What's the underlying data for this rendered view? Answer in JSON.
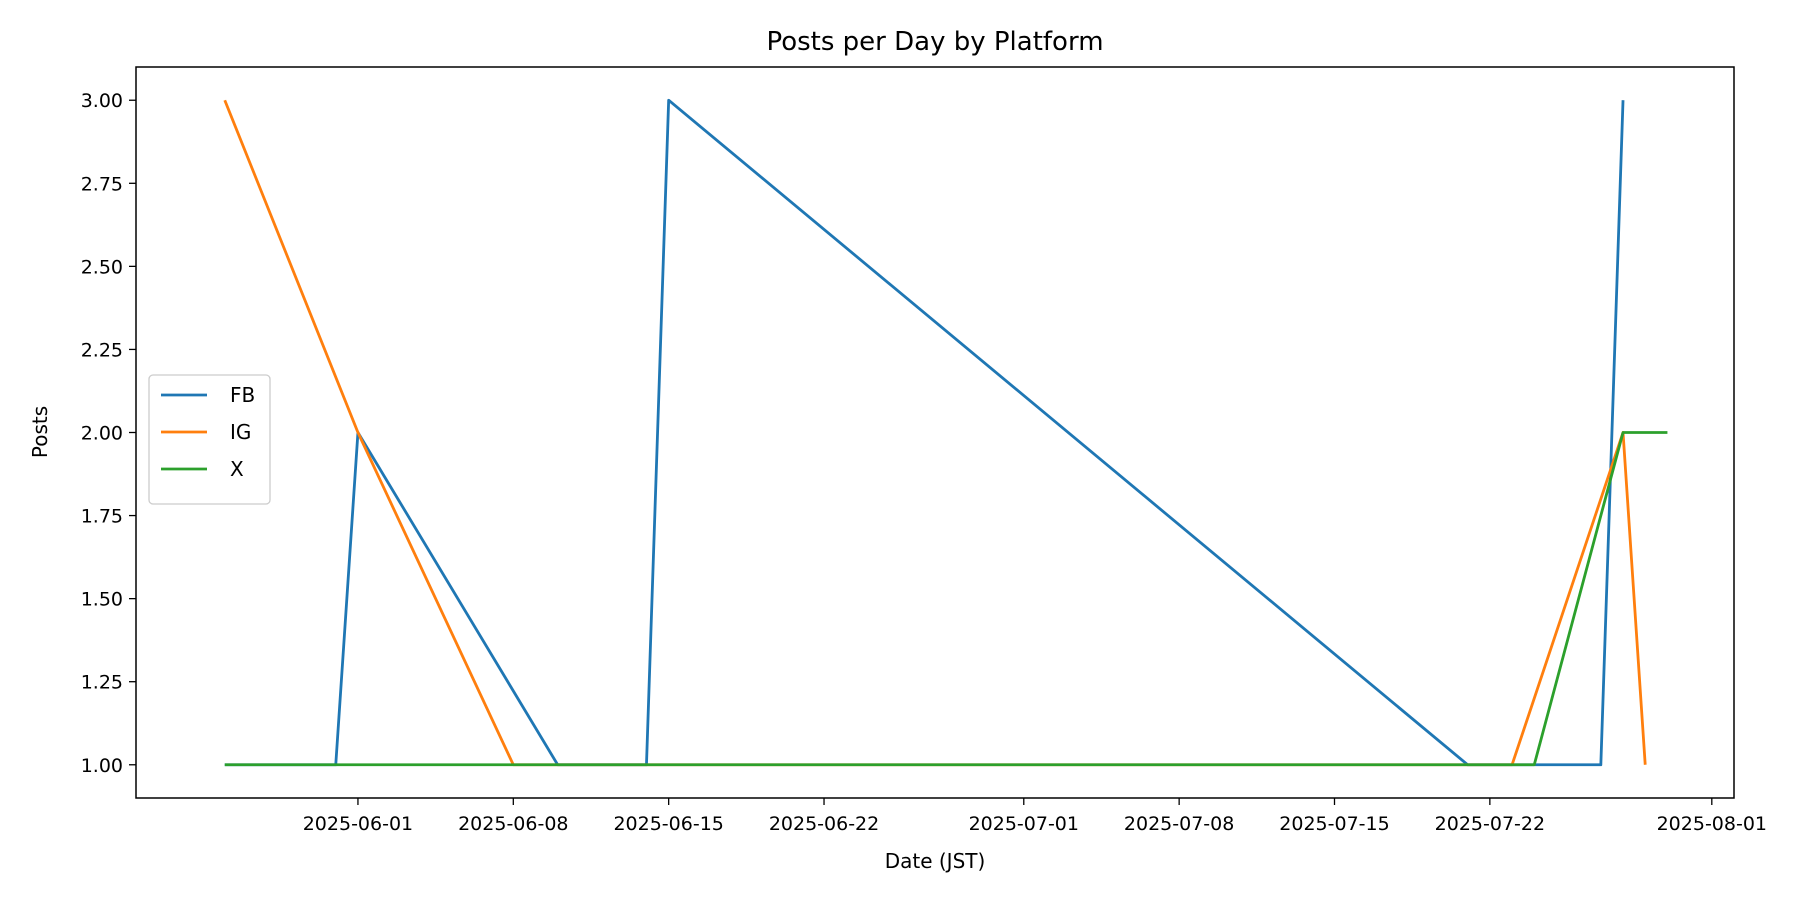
{
  "chart_data": {
    "type": "line",
    "title": "Posts per Day by Platform",
    "xlabel": "Date (JST)",
    "ylabel": "Posts",
    "x_axis_type": "date",
    "xlim": [
      "2025-05-22",
      "2025-08-02"
    ],
    "ylim": [
      0.9,
      3.1
    ],
    "x_ticks": [
      "2025-06-01",
      "2025-06-08",
      "2025-06-15",
      "2025-06-22",
      "2025-07-01",
      "2025-07-08",
      "2025-07-15",
      "2025-07-22",
      "2025-08-01"
    ],
    "y_ticks": [
      "1.00",
      "1.25",
      "1.50",
      "1.75",
      "2.00",
      "2.25",
      "2.50",
      "2.75",
      "3.00"
    ],
    "grid": false,
    "legend_position": "center-left",
    "series": [
      {
        "name": "FB",
        "color": "#1f77b4",
        "points": [
          {
            "x": "2025-05-26",
            "y": 1
          },
          {
            "x": "2025-05-31",
            "y": 1
          },
          {
            "x": "2025-06-01",
            "y": 2
          },
          {
            "x": "2025-06-10",
            "y": 1
          },
          {
            "x": "2025-06-14",
            "y": 1
          },
          {
            "x": "2025-06-15",
            "y": 3
          },
          {
            "x": "2025-07-21",
            "y": 1
          },
          {
            "x": "2025-07-27",
            "y": 1
          },
          {
            "x": "2025-07-28",
            "y": 3
          }
        ]
      },
      {
        "name": "IG",
        "color": "#ff7f0e",
        "points": [
          {
            "x": "2025-05-26",
            "y": 3
          },
          {
            "x": "2025-06-01",
            "y": 2
          },
          {
            "x": "2025-06-08",
            "y": 1
          },
          {
            "x": "2025-07-23",
            "y": 1
          },
          {
            "x": "2025-07-28",
            "y": 2
          },
          {
            "x": "2025-07-29",
            "y": 1
          }
        ]
      },
      {
        "name": "X",
        "color": "#2ca02c",
        "points": [
          {
            "x": "2025-05-26",
            "y": 1
          },
          {
            "x": "2025-07-24",
            "y": 1
          },
          {
            "x": "2025-07-28",
            "y": 2
          },
          {
            "x": "2025-07-30",
            "y": 2
          }
        ]
      }
    ]
  }
}
